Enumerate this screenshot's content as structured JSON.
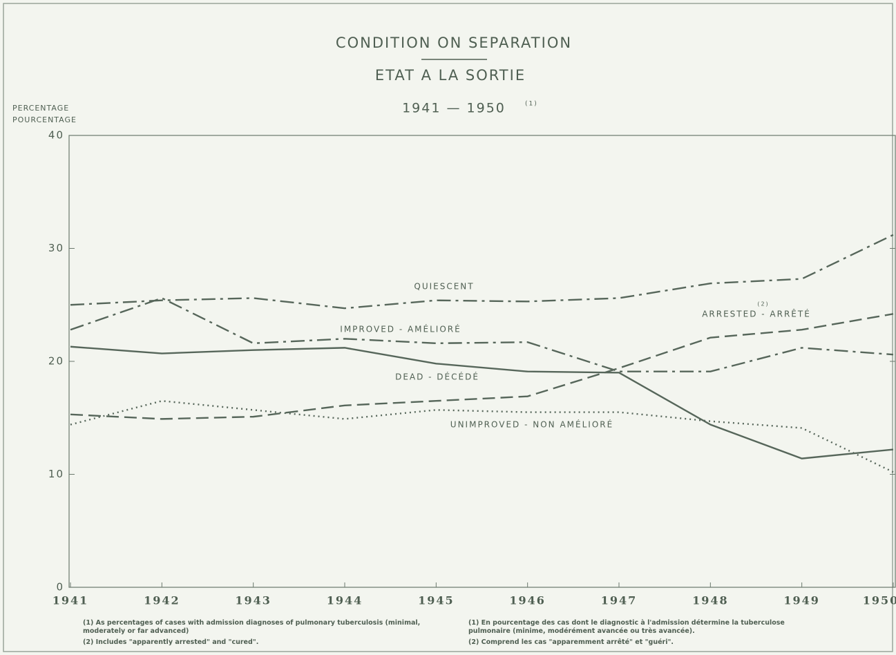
{
  "chart_data": {
    "type": "line",
    "title": "CONDITION ON SEPARATION",
    "subtitle": "ETAT A LA SORTIE",
    "period": "1941 — 1950",
    "period_note": "(1)",
    "y_label": [
      "PERCENTAGE",
      "POURCENTAGE"
    ],
    "categories": [
      "1941",
      "1942",
      "1943",
      "1944",
      "1945",
      "1946",
      "1947",
      "1948",
      "1949",
      "1950"
    ],
    "ylim": [
      0,
      40
    ],
    "yticks": [
      0,
      10,
      20,
      30,
      40
    ],
    "grid": false,
    "series": [
      {
        "name": "QUIESCENT",
        "color": "#56665a",
        "dash": "dashdot",
        "values": [
          25.0,
          25.4,
          25.6,
          24.7,
          25.4,
          25.3,
          25.6,
          26.9,
          27.3,
          31.2
        ]
      },
      {
        "name": "IMPROVED - AMÉLIORÉ",
        "color": "#56665a",
        "dash": "dashdot",
        "values": [
          22.8,
          25.6,
          21.6,
          22.0,
          21.6,
          21.7,
          19.1,
          19.1,
          21.2,
          20.6
        ]
      },
      {
        "name": "ARRESTED - ARRÊTÉ",
        "name_note": "(2)",
        "color": "#56665a",
        "dash": "dashed",
        "values": [
          15.3,
          14.9,
          15.1,
          16.1,
          16.5,
          16.9,
          19.4,
          22.1,
          22.8,
          24.2
        ]
      },
      {
        "name": "DEAD - DÉCÉDÉ",
        "color": "#56665a",
        "dash": "solid",
        "values": [
          21.3,
          20.7,
          21.0,
          21.2,
          19.8,
          19.1,
          19.0,
          14.4,
          11.4,
          12.2
        ]
      },
      {
        "name": "UNIMPROVED - NON AMÉLIORÉ",
        "color": "#56665a",
        "dash": "dotted",
        "values": [
          14.4,
          16.5,
          15.7,
          14.9,
          15.7,
          15.5,
          15.5,
          14.7,
          14.1,
          10.2
        ]
      }
    ],
    "footnotes": [
      "(1) As percentages of cases with admission diagnoses of pulmonary tuberculosis (minimal, moderately or far advanced)",
      "(2) Includes \"apparently arrested\" and \"cured\".",
      "(1) En pourcentage des cas dont le diagnostic à l'admission détermine la tuberculose pulmonaire (minime, modérément avancée ou très avancée).",
      "(2) Comprend les cas \"apparemment arrêté\" et \"guéri\"."
    ]
  }
}
